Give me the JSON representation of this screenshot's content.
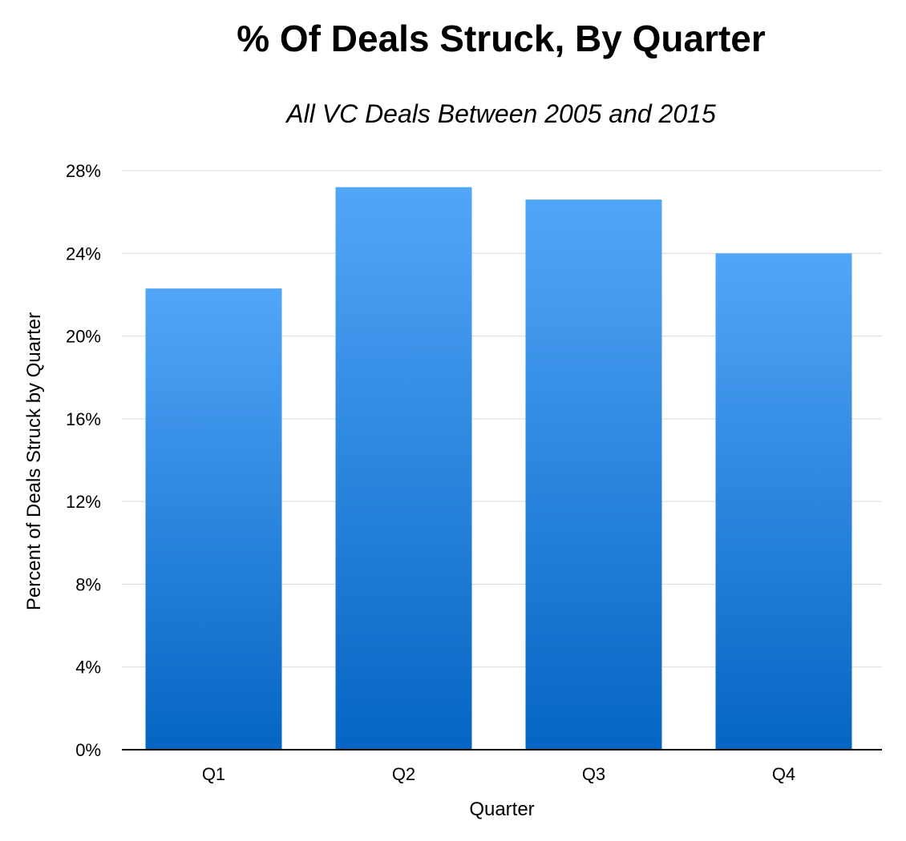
{
  "chart_data": {
    "type": "bar",
    "title": "% Of Deals Struck, By Quarter",
    "subtitle": "All VC Deals Between 2005 and 2015",
    "xlabel": "Quarter",
    "ylabel": "Percent of Deals Struck by Quarter",
    "categories": [
      "Q1",
      "Q2",
      "Q3",
      "Q4"
    ],
    "values": [
      22.3,
      27.2,
      26.6,
      24.0
    ],
    "ylim": [
      0,
      28
    ],
    "yticks": [
      0,
      4,
      8,
      12,
      16,
      20,
      24,
      28
    ],
    "ytick_labels": [
      "0%",
      "4%",
      "8%",
      "12%",
      "16%",
      "20%",
      "24%",
      "28%"
    ],
    "grid": true,
    "colors": {
      "bar_top": "#52a6f8",
      "bar_bottom": "#0565c3",
      "grid": "#d9d9d9",
      "axis": "#000000"
    }
  }
}
